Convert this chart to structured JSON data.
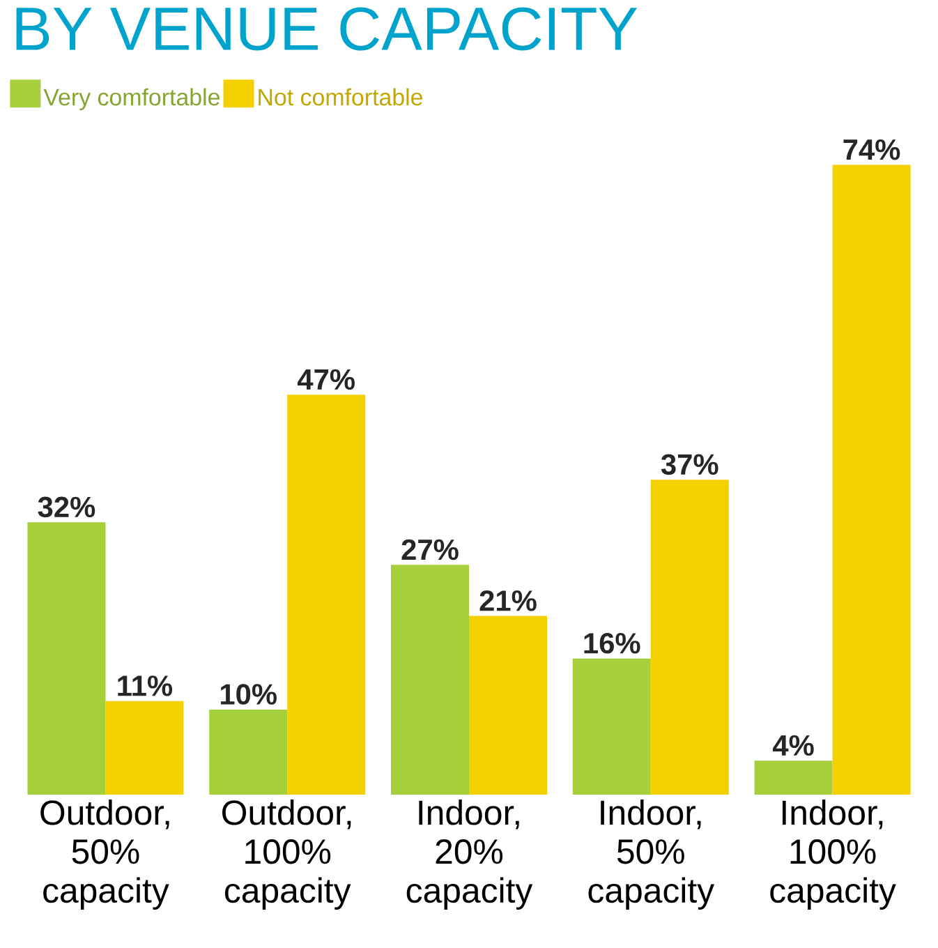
{
  "chart_data": {
    "type": "bar",
    "title": "BY VENUE CAPACITY",
    "categories": [
      "Outdoor, 50% capacity",
      "Outdoor, 100% capacity",
      "Indoor, 20% capacity",
      "Indoor, 50% capacity",
      "Indoor, 100% capacity"
    ],
    "series": [
      {
        "name": "Very comfortable",
        "color": "#a6cf3c",
        "values": [
          32,
          10,
          27,
          16,
          4
        ],
        "value_labels": [
          "32%",
          "10%",
          "27%",
          "16%",
          "4%"
        ]
      },
      {
        "name": "Not comfortable",
        "color": "#f3d000",
        "values": [
          11,
          47,
          21,
          37,
          74
        ],
        "value_labels": [
          "11%",
          "47%",
          "21%",
          "37%",
          "74%"
        ]
      }
    ],
    "legend": "top left"
  }
}
